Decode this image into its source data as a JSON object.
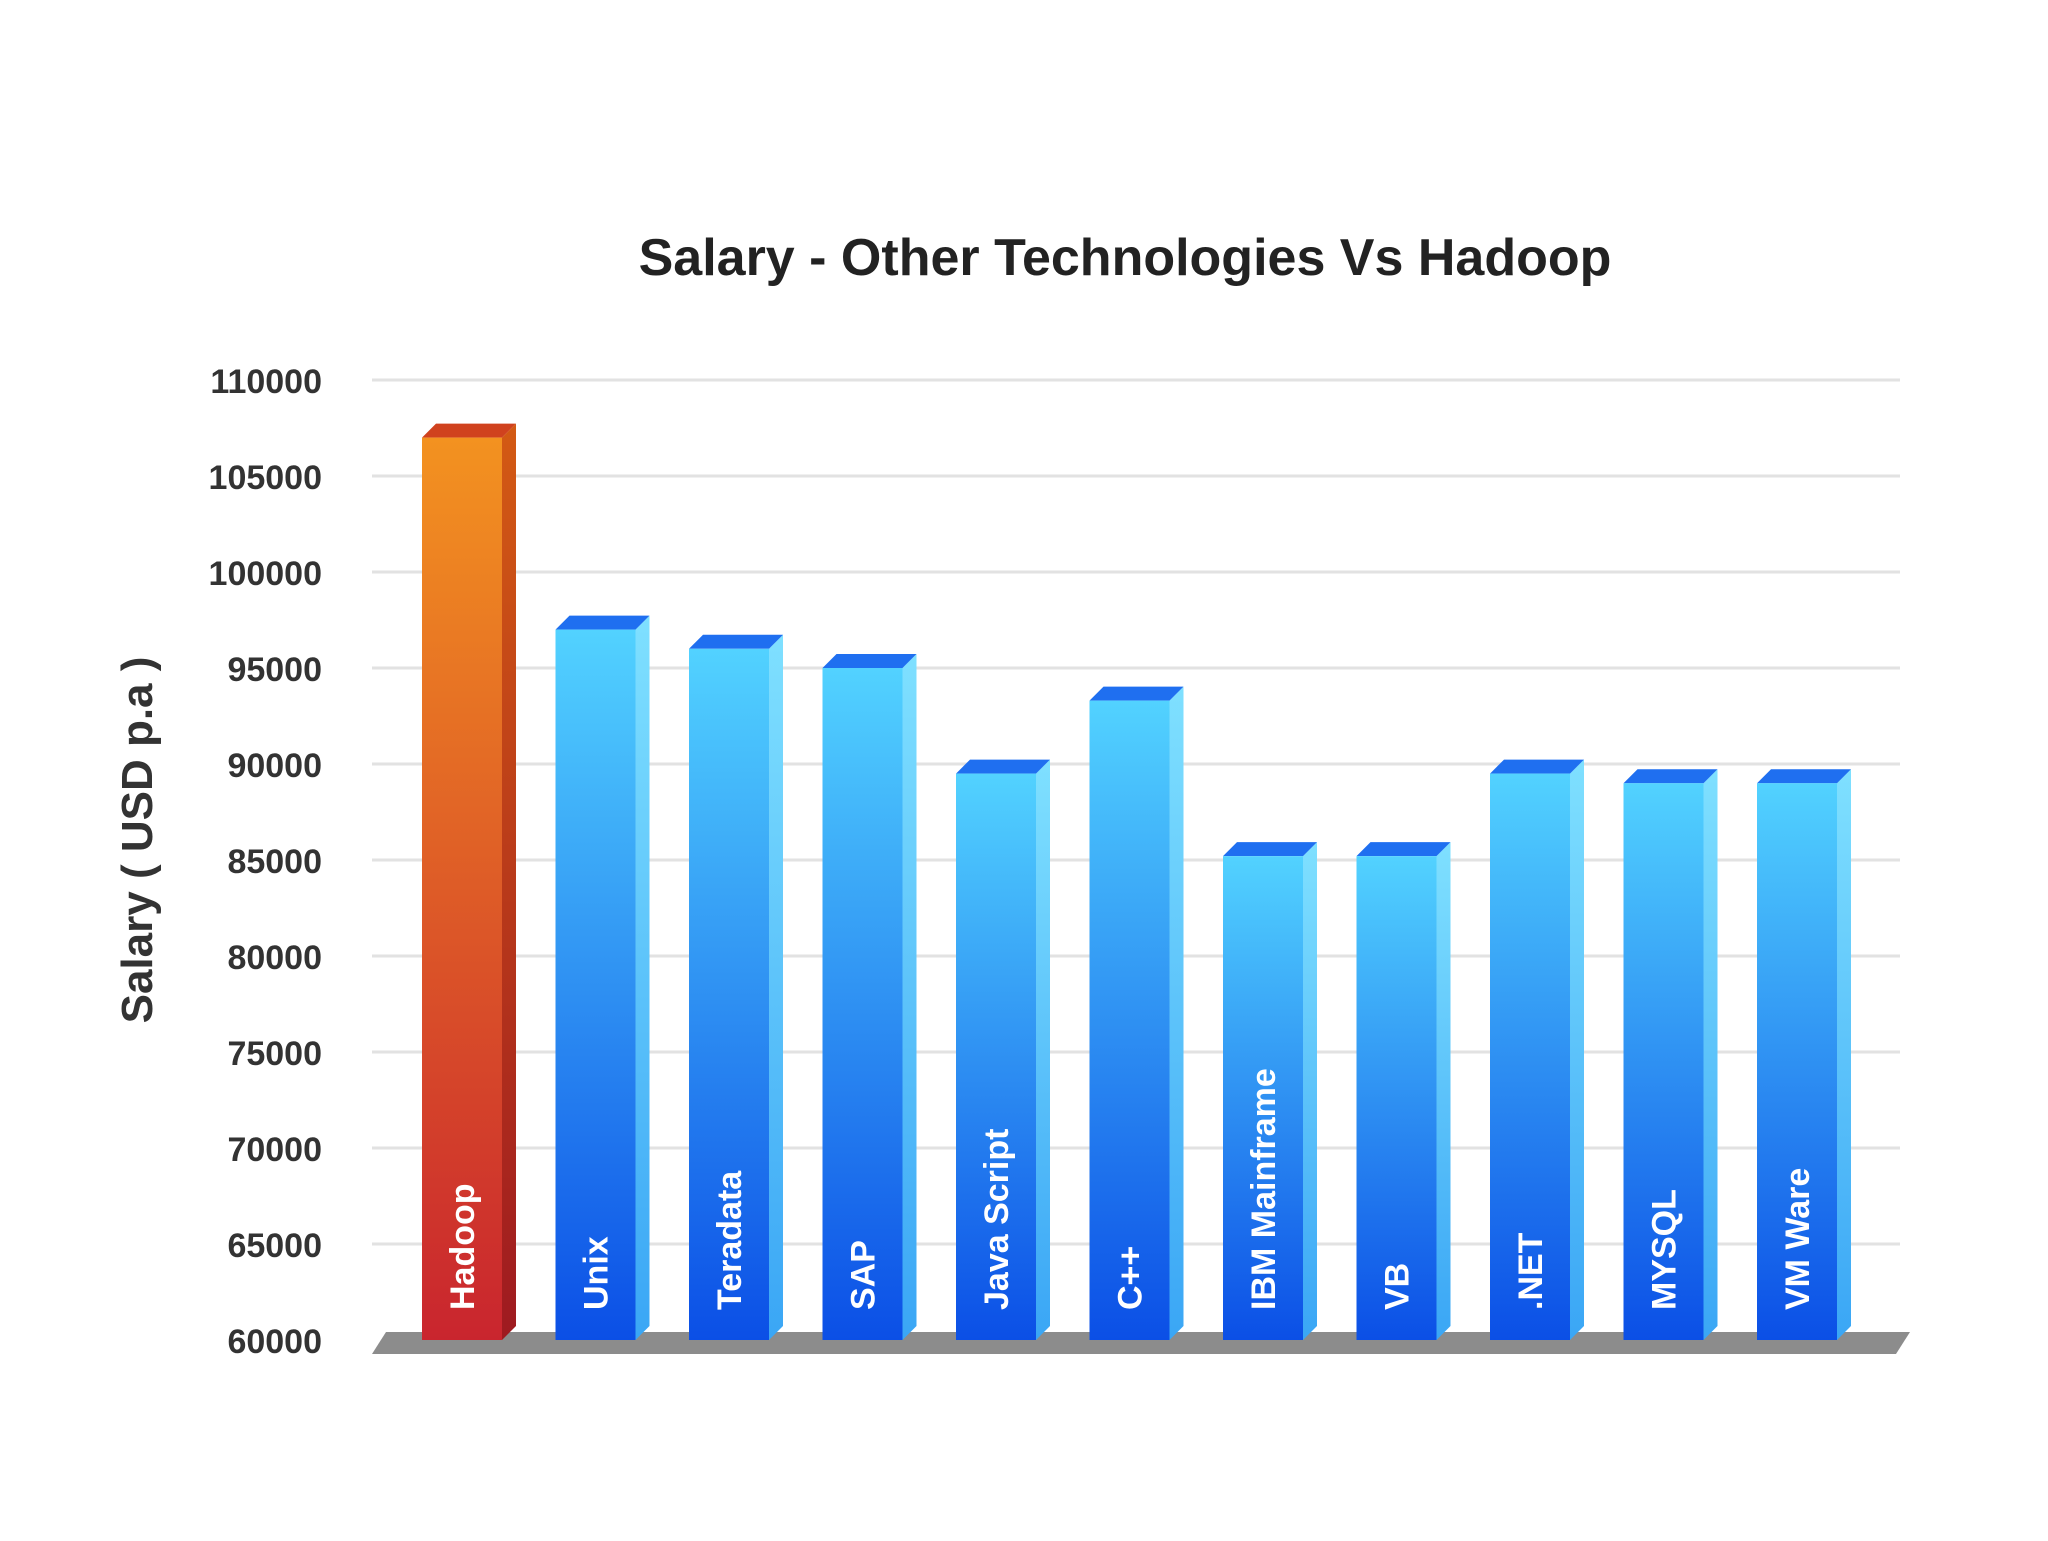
{
  "chart_data": {
    "type": "bar",
    "title": "Salary - Other Technologies Vs Hadoop",
    "xlabel": "",
    "ylabel": "Salary ( USD p.a )",
    "ylim": [
      60000,
      110000
    ],
    "yticks": [
      "110000",
      "105000",
      "100000",
      "95000",
      "90000",
      "85000",
      "80000",
      "75000",
      "70000",
      "65000",
      "60000"
    ],
    "grid": true,
    "categories": [
      "Hadoop",
      "Unix",
      "Teradata",
      "SAP",
      "Java Script",
      "C++",
      "IBM Mainframe",
      "VB",
      ".NET",
      "MYSQL",
      "VM Ware"
    ],
    "values": [
      107000,
      97000,
      96000,
      95000,
      89500,
      93300,
      85200,
      85200,
      89500,
      89000,
      89000
    ],
    "colors": {
      "highlight_top": "#f39220",
      "highlight_bottom": "#c9252e",
      "bar_top": "#52d2ff",
      "bar_bottom": "#0b4fe6",
      "grid": "#e2e2e2",
      "base": "#8c8c8c",
      "text": "#333333"
    }
  }
}
